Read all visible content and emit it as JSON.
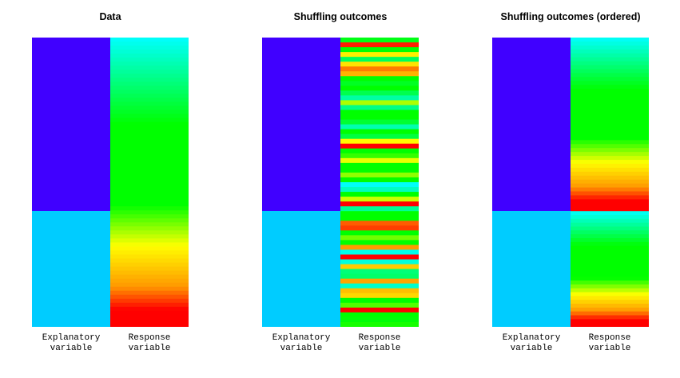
{
  "panels": [
    {
      "title": "Data",
      "labels": {
        "explanatory": [
          "Explanatory",
          "variable"
        ],
        "response": [
          "Response",
          "variable"
        ]
      }
    },
    {
      "title": "Shuffling outcomes",
      "labels": {
        "explanatory": [
          "Explanatory",
          "variable"
        ],
        "response": [
          "Response",
          "variable"
        ]
      }
    },
    {
      "title": "Shuffling outcomes (ordered)",
      "labels": {
        "explanatory": [
          "Explanatory",
          "variable"
        ],
        "response": [
          "Response",
          "variable"
        ]
      }
    }
  ],
  "groups": {
    "group_a": {
      "share": 0.6,
      "color": "#4000ff"
    },
    "group_b": {
      "share": 0.4,
      "color": "#00ccff"
    }
  },
  "colors": {
    "cyan": "#00ffff",
    "green": "#00ff00",
    "yellow": "#ffff00",
    "orange": "#ff9900",
    "red": "#ff0000"
  },
  "shuffle_seed": 7,
  "stripe_count": 60
}
